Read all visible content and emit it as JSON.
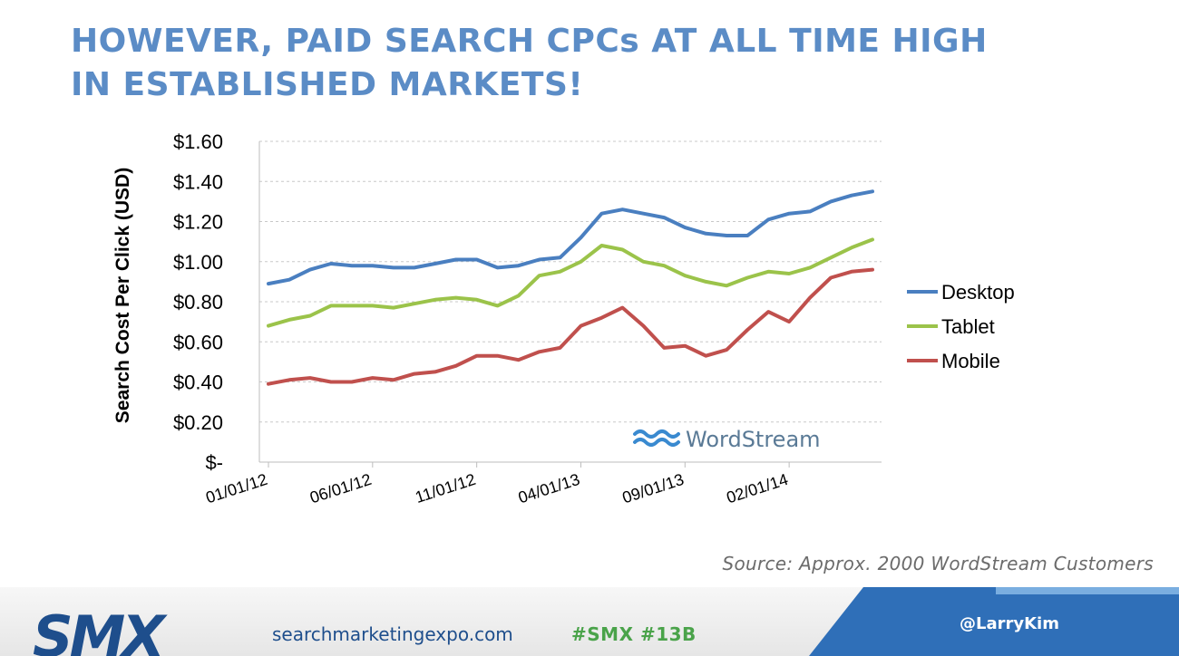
{
  "slide": {
    "title_line1": "HOWEVER, PAID SEARCH CPCs AT ALL TIME HIGH",
    "title_line2": "IN ESTABLISHED MARKETS!",
    "source": "Source: Approx. 2000 WordStream Customers",
    "watermark": "WordStream"
  },
  "footer": {
    "logo": "SMX",
    "url": "searchmarketingexpo.com",
    "hashtags": "#SMX #13B",
    "handle": "@LarryKim"
  },
  "colors": {
    "title": "#5b8cc6",
    "desktop": "#4a7fc0",
    "tablet": "#9bc34a",
    "mobile": "#c0504d",
    "footer_blue": "#2f6fb8",
    "logo": "#1e4e8c"
  },
  "chart_data": {
    "type": "line",
    "ylabel": "Search Cost Per Click (USD)",
    "xlabel": "",
    "ylim": [
      0,
      1.6
    ],
    "yticks": [
      0,
      0.2,
      0.4,
      0.6,
      0.8,
      1.0,
      1.2,
      1.4,
      1.6
    ],
    "ytick_labels": [
      "$-",
      "$0.20",
      "$0.40",
      "$0.60",
      "$0.80",
      "$1.00",
      "$1.20",
      "$1.40",
      "$1.60"
    ],
    "grid": true,
    "legend_position": "right",
    "xtick_labels": [
      "01/01/12",
      "06/01/12",
      "11/01/12",
      "04/01/13",
      "09/01/13",
      "02/01/14"
    ],
    "xtick_indices": [
      0,
      5,
      10,
      15,
      20,
      25
    ],
    "x": [
      "01/01/12",
      "02/01/12",
      "03/01/12",
      "04/01/12",
      "05/01/12",
      "06/01/12",
      "07/01/12",
      "08/01/12",
      "09/01/12",
      "10/01/12",
      "11/01/12",
      "12/01/12",
      "01/01/13",
      "02/01/13",
      "03/01/13",
      "04/01/13",
      "05/01/13",
      "06/01/13",
      "07/01/13",
      "08/01/13",
      "09/01/13",
      "10/01/13",
      "11/01/13",
      "12/01/13",
      "01/01/14",
      "02/01/14",
      "03/01/14",
      "04/01/14",
      "05/01/14",
      "06/01/14"
    ],
    "series": [
      {
        "name": "Desktop",
        "values": [
          0.89,
          0.91,
          0.96,
          0.99,
          0.98,
          0.98,
          0.97,
          0.97,
          0.99,
          1.01,
          1.01,
          0.97,
          0.98,
          1.01,
          1.02,
          1.12,
          1.24,
          1.26,
          1.24,
          1.22,
          1.17,
          1.14,
          1.13,
          1.13,
          1.21,
          1.24,
          1.25,
          1.3,
          1.33,
          1.35
        ]
      },
      {
        "name": "Tablet",
        "values": [
          0.68,
          0.71,
          0.73,
          0.78,
          0.78,
          0.78,
          0.77,
          0.79,
          0.81,
          0.82,
          0.81,
          0.78,
          0.83,
          0.93,
          0.95,
          1.0,
          1.08,
          1.06,
          1.0,
          0.98,
          0.93,
          0.9,
          0.88,
          0.92,
          0.95,
          0.94,
          0.97,
          1.02,
          1.07,
          1.11
        ]
      },
      {
        "name": "Mobile",
        "values": [
          0.39,
          0.41,
          0.42,
          0.4,
          0.4,
          0.42,
          0.41,
          0.44,
          0.45,
          0.48,
          0.53,
          0.53,
          0.51,
          0.55,
          0.57,
          0.68,
          0.72,
          0.77,
          0.68,
          0.57,
          0.58,
          0.53,
          0.56,
          0.66,
          0.75,
          0.7,
          0.82,
          0.92,
          0.95,
          0.96
        ]
      }
    ]
  }
}
